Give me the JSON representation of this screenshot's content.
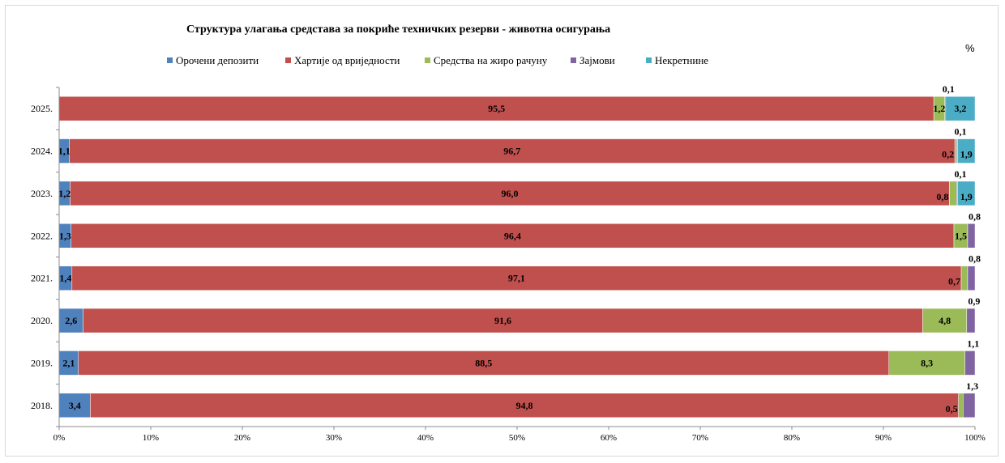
{
  "chart_data": {
    "type": "bar",
    "orientation": "horizontal",
    "stacked": "percent",
    "title": "Структура  улагања средстава за покриће техничких резерви - животна осигурања",
    "unit_label": "%",
    "categories": [
      "2025.",
      "2024.",
      "2023.",
      "2022.",
      "2021.",
      "2020.",
      "2019.",
      "2018."
    ],
    "series": [
      {
        "name": "Орочени депозити",
        "color": "#4f81bd",
        "values": [
          0,
          1.1,
          1.2,
          1.3,
          1.4,
          2.6,
          2.1,
          3.4
        ],
        "labels": [
          "",
          "1,1",
          "1,2",
          "1,3",
          "1,4",
          "2,6",
          "2,1",
          "3,4"
        ]
      },
      {
        "name": "Хартије од вриједности",
        "color": "#c0504d",
        "values": [
          95.5,
          96.7,
          96.0,
          96.4,
          97.1,
          91.6,
          88.5,
          94.8
        ],
        "labels": [
          "95,5",
          "96,7",
          "96,0",
          "96,4",
          "97,1",
          "91,6",
          "88,5",
          "94,8"
        ]
      },
      {
        "name": "Средства на жиро рачуну",
        "color": "#9bbb59",
        "values": [
          1.2,
          0.2,
          0.8,
          1.5,
          0.7,
          4.8,
          8.3,
          0.5
        ],
        "labels": [
          "1,2",
          "0,2",
          "0,8",
          "1,5",
          "0,7",
          "4,8",
          "8,3",
          "0,5"
        ]
      },
      {
        "name": "Зајмови",
        "color": "#8064a2",
        "values": [
          0.1,
          0.1,
          0.1,
          0.8,
          0.8,
          0.9,
          1.1,
          1.3
        ],
        "labels": [
          "0,1",
          "0,1",
          "0,1",
          "0,8",
          "0,8",
          "0,9",
          "1,1",
          "1,3"
        ]
      },
      {
        "name": "Некретнине",
        "color": "#4bacc6",
        "values": [
          3.2,
          1.9,
          1.9,
          0,
          0,
          0,
          0,
          0
        ],
        "labels": [
          "3,2",
          "1,9",
          "1,9",
          "",
          "",
          "",
          "",
          ""
        ]
      }
    ],
    "x_ticks": [
      "0%",
      "10%",
      "20%",
      "30%",
      "40%",
      "50%",
      "60%",
      "70%",
      "80%",
      "90%",
      "100%"
    ],
    "xlim": [
      0,
      100
    ],
    "grid": false,
    "legend_position": "top"
  }
}
